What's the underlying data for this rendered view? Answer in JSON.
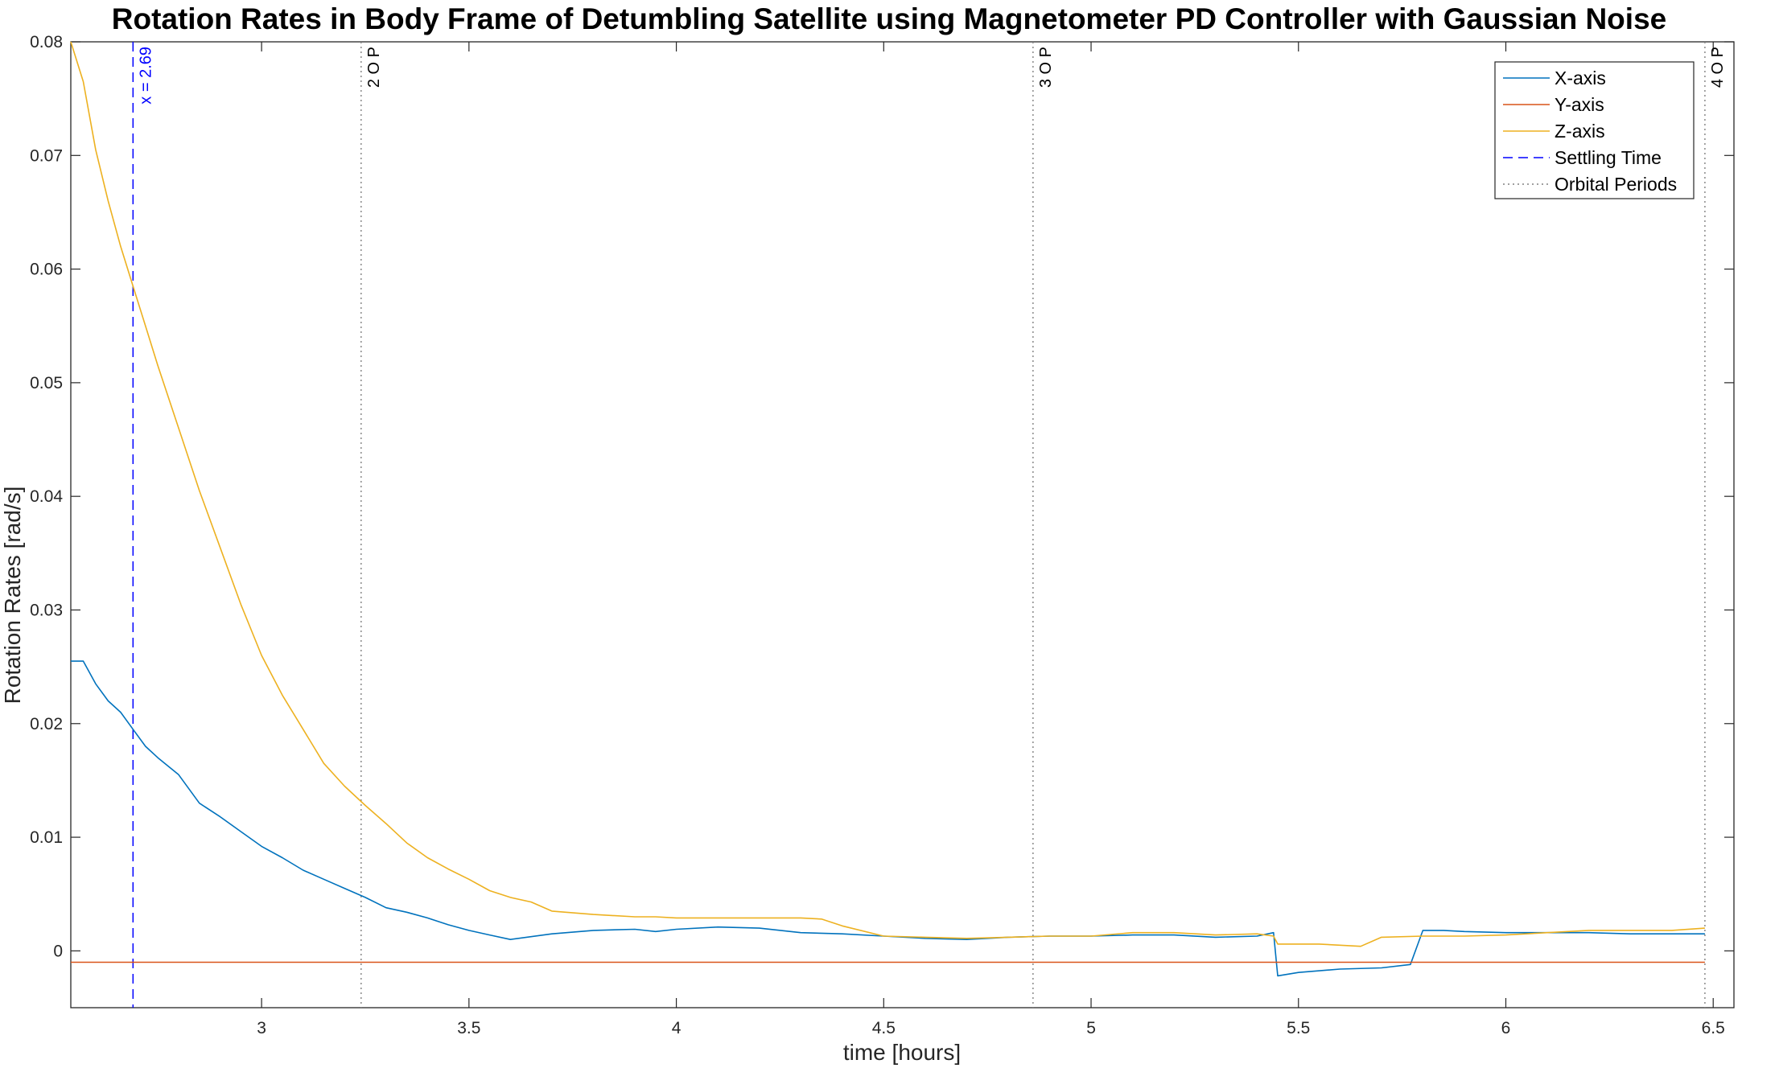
{
  "chart_data": {
    "type": "line",
    "title": "Rotation Rates in Body Frame of Detumbling Satellite using Magnetometer PD Controller with Gaussian Noise",
    "xlabel": "time [hours]",
    "ylabel": "Rotation Rates  [rad/s]",
    "xlim": [
      2.54,
      6.55
    ],
    "ylim": [
      -0.005,
      0.08
    ],
    "xticks": [
      3,
      3.5,
      4,
      4.5,
      5,
      5.5,
      6,
      6.5
    ],
    "xtick_labels": [
      "3",
      "3.5",
      "4",
      "4.5",
      "5",
      "5.5",
      "6",
      "6.5"
    ],
    "yticks": [
      0,
      0.01,
      0.02,
      0.03,
      0.04,
      0.05,
      0.06,
      0.07,
      0.08
    ],
    "ytick_labels": [
      "0",
      "0.01",
      "0.02",
      "0.03",
      "0.04",
      "0.05",
      "0.06",
      "0.07",
      "0.08"
    ],
    "grid": false,
    "legend_position": "top-right",
    "series": [
      {
        "name": "X-axis",
        "color": "#0072BD",
        "style": "solid",
        "x": [
          2.54,
          2.57,
          2.6,
          2.63,
          2.66,
          2.69,
          2.72,
          2.75,
          2.8,
          2.85,
          2.9,
          2.95,
          3.0,
          3.05,
          3.1,
          3.15,
          3.2,
          3.25,
          3.3,
          3.35,
          3.4,
          3.45,
          3.5,
          3.55,
          3.6,
          3.7,
          3.8,
          3.9,
          3.95,
          4.0,
          4.1,
          4.2,
          4.3,
          4.4,
          4.5,
          4.6,
          4.7,
          4.8,
          4.9,
          5.0,
          5.1,
          5.2,
          5.3,
          5.4,
          5.44,
          5.45,
          5.5,
          5.6,
          5.7,
          5.77,
          5.8,
          5.85,
          5.9,
          6.0,
          6.1,
          6.2,
          6.3,
          6.4,
          6.48
        ],
        "values": [
          0.0255,
          0.0255,
          0.0235,
          0.022,
          0.021,
          0.0195,
          0.018,
          0.017,
          0.0155,
          0.013,
          0.0118,
          0.0105,
          0.0092,
          0.0082,
          0.0071,
          0.0063,
          0.0055,
          0.0047,
          0.0038,
          0.0034,
          0.0029,
          0.0023,
          0.0018,
          0.0014,
          0.001,
          0.0015,
          0.0018,
          0.0019,
          0.0017,
          0.0019,
          0.0021,
          0.002,
          0.0016,
          0.0015,
          0.0013,
          0.0011,
          0.001,
          0.0012,
          0.0013,
          0.0013,
          0.0014,
          0.0014,
          0.0012,
          0.0013,
          0.0016,
          -0.0022,
          -0.0019,
          -0.0016,
          -0.0015,
          -0.0012,
          0.0018,
          0.0018,
          0.0017,
          0.0016,
          0.0016,
          0.0016,
          0.0015,
          0.0015,
          0.0015
        ]
      },
      {
        "name": "Y-axis",
        "color": "#D95319",
        "style": "solid",
        "x": [
          2.54,
          6.48
        ],
        "values": [
          -0.001,
          -0.001
        ]
      },
      {
        "name": "Z-axis",
        "color": "#EDB120",
        "style": "solid",
        "x": [
          2.54,
          2.57,
          2.6,
          2.63,
          2.66,
          2.69,
          2.72,
          2.75,
          2.8,
          2.85,
          2.9,
          2.95,
          3.0,
          3.05,
          3.1,
          3.15,
          3.2,
          3.25,
          3.3,
          3.35,
          3.4,
          3.45,
          3.5,
          3.55,
          3.6,
          3.65,
          3.7,
          3.8,
          3.9,
          3.95,
          4.0,
          4.1,
          4.2,
          4.3,
          4.35,
          4.4,
          4.5,
          4.6,
          4.7,
          4.8,
          4.9,
          5.0,
          5.1,
          5.2,
          5.3,
          5.4,
          5.44,
          5.45,
          5.55,
          5.65,
          5.7,
          5.8,
          5.9,
          6.0,
          6.1,
          6.2,
          6.3,
          6.4,
          6.48
        ],
        "values": [
          0.08,
          0.0765,
          0.0705,
          0.066,
          0.062,
          0.0585,
          0.055,
          0.0515,
          0.046,
          0.0405,
          0.0355,
          0.0305,
          0.026,
          0.0225,
          0.0195,
          0.0165,
          0.0145,
          0.0128,
          0.0112,
          0.0095,
          0.0082,
          0.0072,
          0.0063,
          0.0053,
          0.0047,
          0.0043,
          0.0035,
          0.0032,
          0.003,
          0.003,
          0.0029,
          0.0029,
          0.0029,
          0.0029,
          0.0028,
          0.0022,
          0.0013,
          0.0012,
          0.0011,
          0.0012,
          0.0013,
          0.0013,
          0.0016,
          0.0016,
          0.0014,
          0.0015,
          0.0013,
          0.0006,
          0.0006,
          0.0004,
          0.0012,
          0.0013,
          0.0013,
          0.0014,
          0.0016,
          0.0018,
          0.0018,
          0.0018,
          0.002
        ]
      }
    ],
    "vertical_lines": [
      {
        "name": "Settling Time",
        "x": 2.69,
        "label": "x = 2.69",
        "color": "#0000FF",
        "style": "dashed"
      },
      {
        "name": "Orbital Periods",
        "x": 3.24,
        "label": "2 O P",
        "color": "#808080",
        "style": "dotted"
      },
      {
        "name": "Orbital Periods",
        "x": 4.86,
        "label": "3 O P",
        "color": "#808080",
        "style": "dotted"
      },
      {
        "name": "Orbital Periods",
        "x": 6.48,
        "label": "4 O P",
        "color": "#808080",
        "style": "dotted"
      }
    ],
    "legend": [
      {
        "label": "X-axis",
        "color": "#0072BD",
        "style": "solid"
      },
      {
        "label": "Y-axis",
        "color": "#D95319",
        "style": "solid"
      },
      {
        "label": "Z-axis",
        "color": "#EDB120",
        "style": "solid"
      },
      {
        "label": "Settling Time",
        "color": "#0000FF",
        "style": "dashed"
      },
      {
        "label": "Orbital Periods",
        "color": "#808080",
        "style": "dotted"
      }
    ]
  }
}
